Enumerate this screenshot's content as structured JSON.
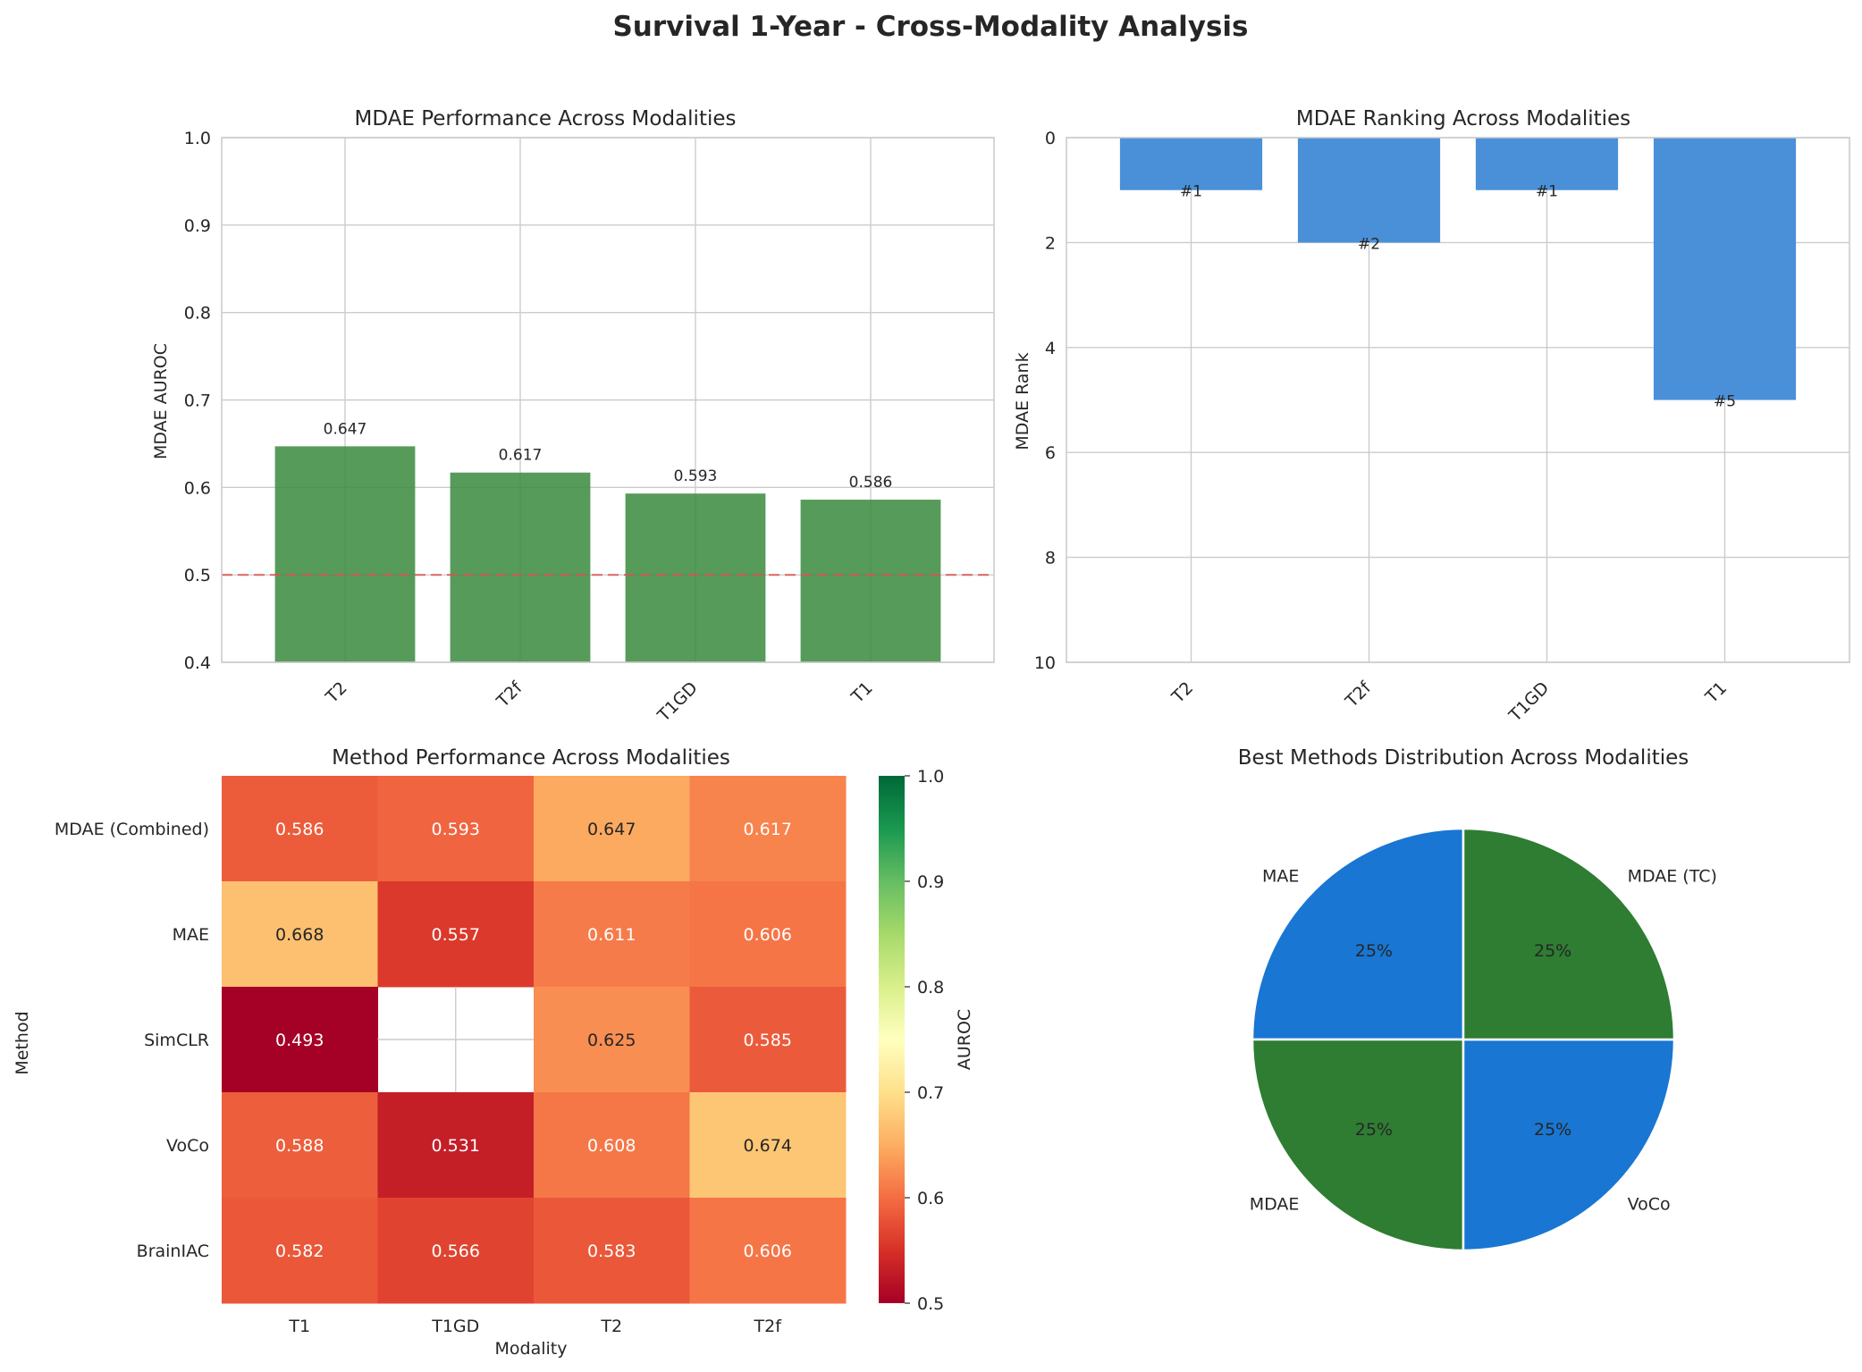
{
  "title": "Survival 1-Year - Cross-Modality Analysis",
  "chart_data": [
    {
      "type": "bar",
      "title": "MDAE Performance Across Modalities",
      "xlabel": "",
      "ylabel": "MDAE AUROC",
      "categories": [
        "T2",
        "T2f",
        "T1GD",
        "T1"
      ],
      "values": [
        0.647,
        0.617,
        0.593,
        0.586
      ],
      "data_labels": [
        "0.647",
        "0.617",
        "0.593",
        "0.586"
      ],
      "ylim": [
        0.4,
        1.0
      ],
      "yticks": [
        "0.4",
        "0.5",
        "0.6",
        "0.7",
        "0.8",
        "0.9",
        "1.0"
      ],
      "reference_line": 0.5,
      "bar_color": "#3a8a3e",
      "reference_color": "#e05050",
      "grid": true
    },
    {
      "type": "bar",
      "title": "MDAE Ranking Across Modalities",
      "xlabel": "",
      "ylabel": "MDAE Rank",
      "categories": [
        "T2",
        "T2f",
        "T1GD",
        "T1"
      ],
      "values": [
        1,
        2,
        1,
        5
      ],
      "data_labels": [
        "#1",
        "#2",
        "#1",
        "#5"
      ],
      "ylim": [
        0,
        10
      ],
      "y_inverted": true,
      "yticks": [
        "0",
        "2",
        "4",
        "6",
        "8",
        "10"
      ],
      "bar_color": "#4a90d9",
      "grid": true
    },
    {
      "type": "heatmap",
      "title": "Method Performance Across Modalities",
      "xlabel": "Modality",
      "ylabel": "Method",
      "x": [
        "T1",
        "T1GD",
        "T2",
        "T2f"
      ],
      "y": [
        "MDAE (Combined)",
        "MAE",
        "SimCLR",
        "VoCo",
        "BrainIAC"
      ],
      "values": [
        [
          0.586,
          0.593,
          0.647,
          0.617
        ],
        [
          0.668,
          0.557,
          0.611,
          0.606
        ],
        [
          0.493,
          null,
          0.625,
          0.585
        ],
        [
          0.588,
          0.531,
          0.608,
          0.674
        ],
        [
          0.582,
          0.566,
          0.583,
          0.606
        ]
      ],
      "colorbar_label": "AUROC",
      "colorbar_range": [
        0.5,
        1.0
      ],
      "colorbar_ticks": [
        "0.5",
        "0.6",
        "0.7",
        "0.8",
        "0.9",
        "1.0"
      ],
      "colormap": "RdYlGn"
    },
    {
      "type": "pie",
      "title": "Best Methods Distribution Across Modalities",
      "labels": [
        "MAE",
        "MDAE",
        "VoCo",
        "MDAE (TC)"
      ],
      "values": [
        25,
        25,
        25,
        25
      ],
      "pct_labels": [
        "25%",
        "25%",
        "25%",
        "25%"
      ],
      "colors": [
        "#1976d2",
        "#2e7d32",
        "#1976d2",
        "#2e7d32"
      ]
    }
  ]
}
